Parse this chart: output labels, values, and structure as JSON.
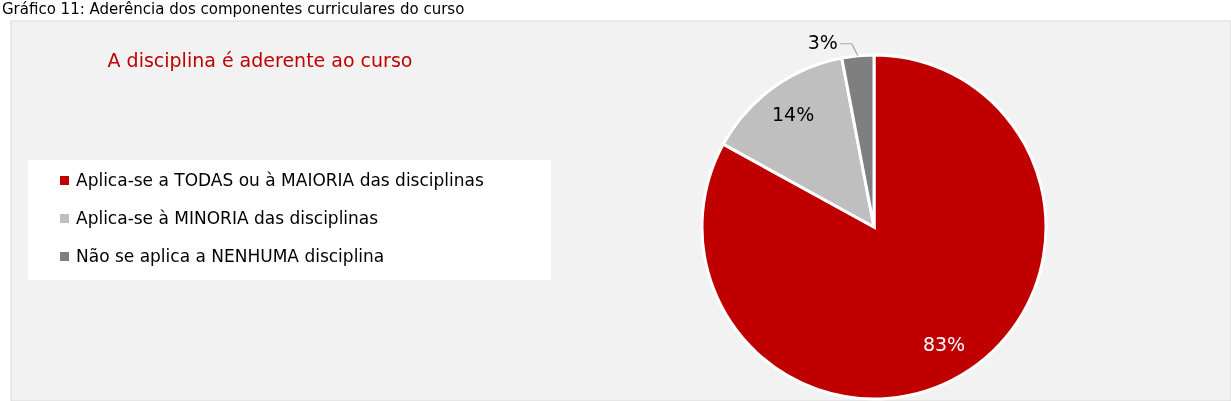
{
  "chart_data": {
    "type": "pie",
    "title": "A disciplina é aderente ao curso",
    "annotations": [
      "Gráfico 11: Aderência dos componentes curriculares do curso"
    ],
    "categories": [
      "Aplica-se a TODAS ou à MAIORIA das disciplinas",
      "Aplica-se à MINORIA das disciplinas",
      "Não se aplica a NENHUMA disciplina"
    ],
    "values": [
      83,
      14,
      3
    ],
    "colors": [
      "#c00000",
      "#bfbfbf",
      "#7f7f7f"
    ],
    "value_labels": [
      "83%",
      "14%",
      "3%"
    ],
    "legend": "left"
  }
}
